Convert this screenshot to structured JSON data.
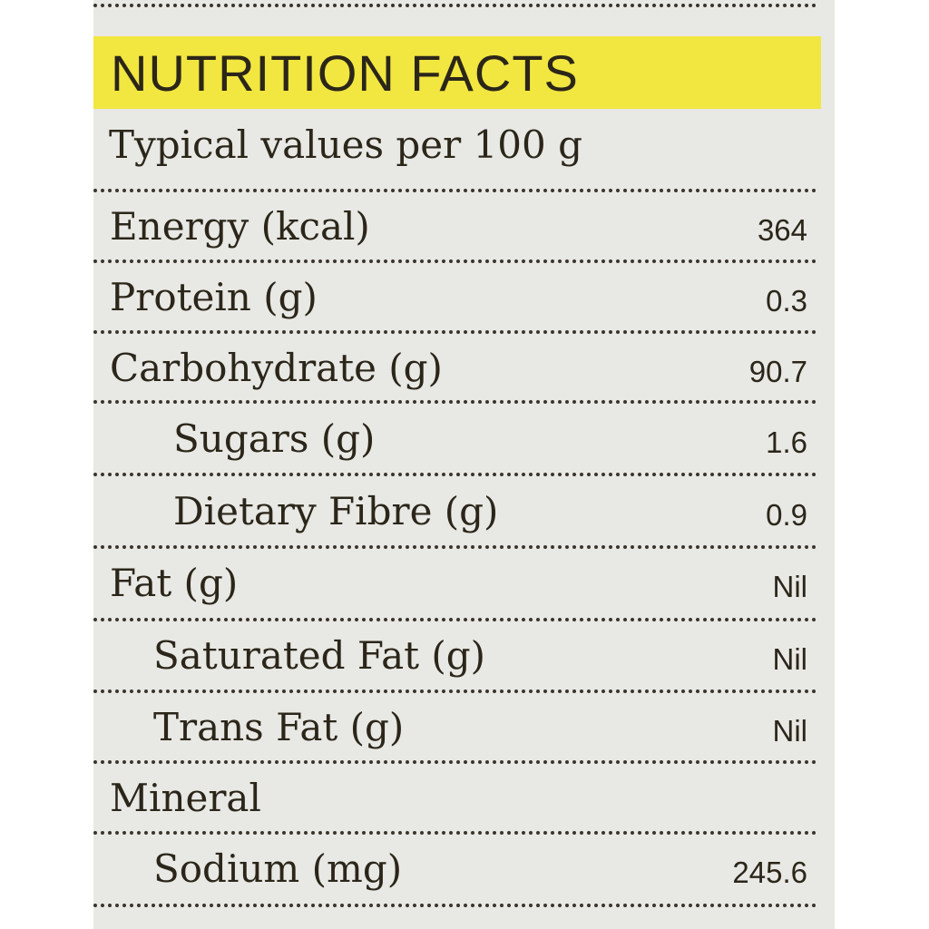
{
  "title": "NUTRITION FACTS",
  "subtitle": "Typical values per 100 g",
  "rows": [
    {
      "label": "Energy (kcal)",
      "value": 364
    },
    {
      "label": "Protein (g)",
      "value": 0.3
    },
    {
      "label": "Carbohydrate (g)",
      "value": 90.7
    },
    {
      "label": "Sugars (g)",
      "value": 1.6
    },
    {
      "label": "Dietary Fibre (g)",
      "value": 0.9
    },
    {
      "label": "Fat (g)",
      "value": "Nil"
    },
    {
      "label": "Saturated Fat (g)",
      "value": "Nil"
    },
    {
      "label": "Trans Fat (g)",
      "value": "Nil"
    },
    {
      "label": "Mineral"
    },
    {
      "label": "Sodium (mg)",
      "value": 245.6
    }
  ]
}
